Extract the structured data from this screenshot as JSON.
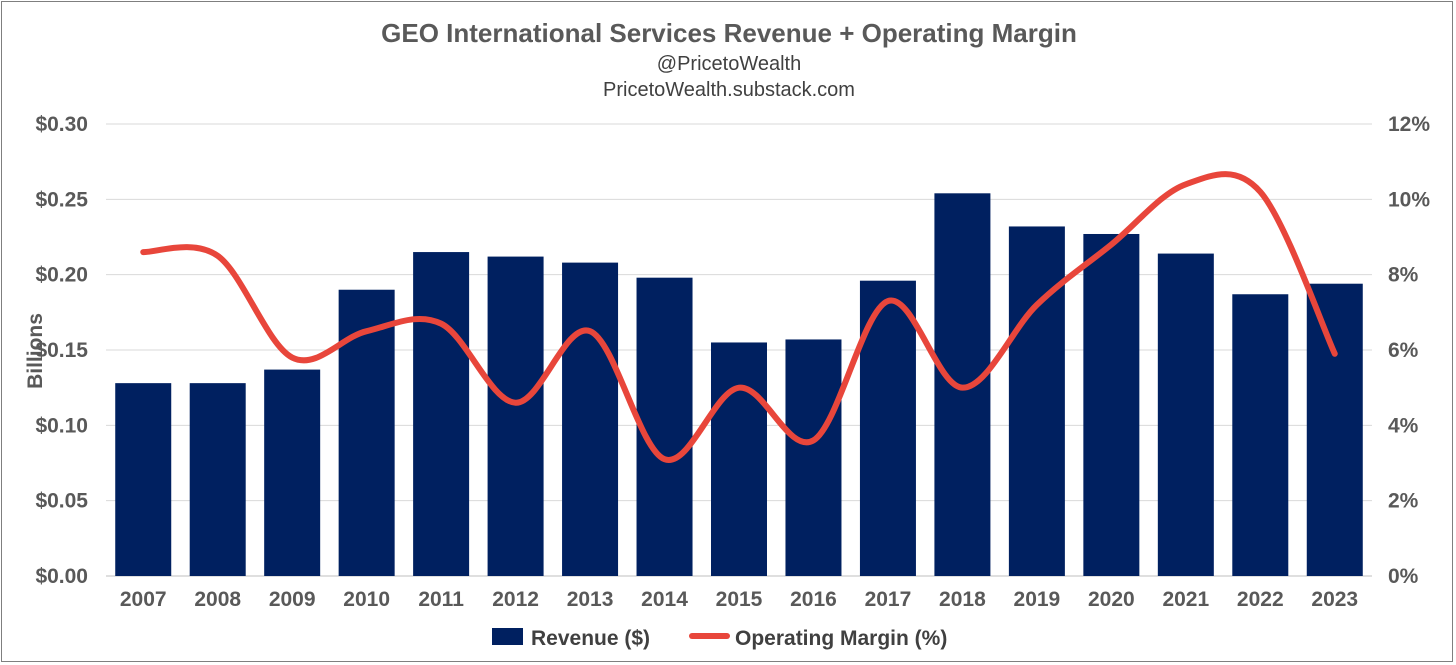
{
  "chart_data": {
    "type": "bar",
    "title": "GEO International Services Revenue + Operating Margin",
    "subtitle_lines": [
      "@PricetoWealth",
      "PricetoWealth.substack.com"
    ],
    "categories": [
      "2007",
      "2008",
      "2009",
      "2010",
      "2011",
      "2012",
      "2013",
      "2014",
      "2015",
      "2016",
      "2017",
      "2018",
      "2019",
      "2020",
      "2021",
      "2022",
      "2023"
    ],
    "series": [
      {
        "name": "Revenue ($)",
        "type": "bar",
        "axis": "left",
        "color": "#002060",
        "values": [
          0.128,
          0.128,
          0.137,
          0.19,
          0.215,
          0.212,
          0.208,
          0.198,
          0.155,
          0.157,
          0.196,
          0.254,
          0.232,
          0.227,
          0.214,
          0.187,
          0.194
        ]
      },
      {
        "name": "Operating Margin (%)",
        "type": "line",
        "smooth": true,
        "axis": "right",
        "color": "#e8463b",
        "values": [
          8.6,
          8.5,
          5.8,
          6.5,
          6.7,
          4.6,
          6.5,
          3.1,
          5.0,
          3.6,
          7.3,
          5.0,
          7.2,
          8.8,
          10.4,
          10.2,
          5.9
        ]
      }
    ],
    "ylabel": "Billions",
    "ylim": [
      0,
      0.3
    ],
    "y_ticks": [
      "$0.00",
      "$0.05",
      "$0.10",
      "$0.15",
      "$0.20",
      "$0.25",
      "$0.30"
    ],
    "y2lim": [
      0,
      12
    ],
    "y2_ticks": [
      "0%",
      "2%",
      "4%",
      "6%",
      "8%",
      "10%",
      "12%"
    ],
    "grid": true,
    "legend_position": "bottom"
  }
}
